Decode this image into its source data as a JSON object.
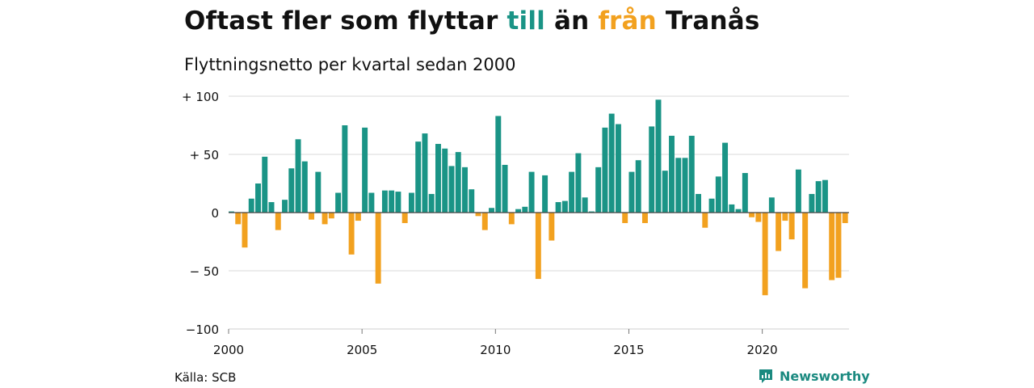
{
  "title": {
    "part1": "Oftast fler som flyttar ",
    "till": "till",
    "part2": " än ",
    "fran": "från",
    "part3": " Tranås"
  },
  "subtitle": "Flyttningsnetto per kvartal sedan 2000",
  "source": "Källa: SCB",
  "brand": "Newsworthy",
  "colors": {
    "positive": "#1a9486",
    "negative": "#f2a11f",
    "till": "#1a9486",
    "fran": "#f2a11f",
    "brand": "#1b8a80"
  },
  "chart_data": {
    "type": "bar",
    "x_start": 2000,
    "x_step": 0.25,
    "xlim": [
      2000,
      2023.25
    ],
    "ylim": [
      -100,
      100
    ],
    "xticks": [
      2000,
      2005,
      2010,
      2015,
      2020
    ],
    "xtick_labels": [
      "2000",
      "2005",
      "2010",
      "2015",
      "2020"
    ],
    "yticks": [
      100,
      50,
      0,
      -50,
      -100
    ],
    "ytick_labels": [
      "+ 100",
      "+  50",
      "0",
      "− 50",
      "−100"
    ],
    "values": [
      1,
      -10,
      -30,
      12,
      25,
      48,
      9,
      -15,
      11,
      38,
      63,
      44,
      -6,
      35,
      -10,
      -5,
      17,
      75,
      -36,
      -7,
      73,
      17,
      -61,
      19,
      19,
      18,
      -9,
      17,
      61,
      68,
      16,
      59,
      55,
      40,
      52,
      39,
      20,
      -3,
      -15,
      4,
      83,
      41,
      -10,
      3,
      5,
      35,
      -57,
      32,
      -24,
      9,
      10,
      35,
      51,
      13,
      1,
      39,
      73,
      85,
      76,
      -9,
      35,
      45,
      -9,
      74,
      97,
      36,
      66,
      47,
      47,
      66,
      16,
      -13,
      12,
      31,
      60,
      7,
      3,
      34,
      -4,
      -8,
      -71,
      13,
      -33,
      -7,
      -23,
      37,
      -65,
      16,
      27,
      28,
      -58,
      -56,
      -9
    ]
  }
}
